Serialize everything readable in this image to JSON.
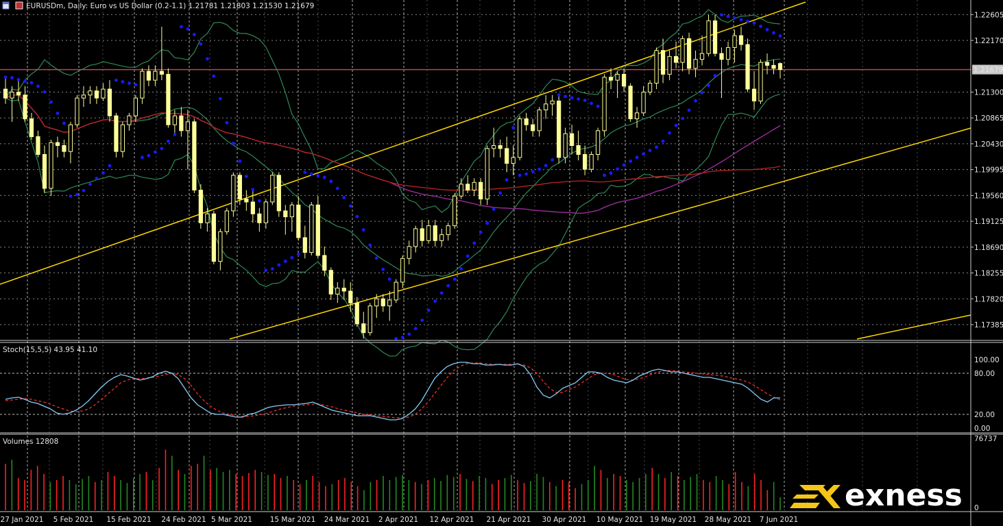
{
  "header": {
    "symbol_line": "EURUSDm, Daily:  Euro vs US Dollar (0.2-1.1)  1.21781 1.21803 1.21530 1.21679"
  },
  "chart_data": [
    {
      "type": "candlestick",
      "title": "EURUSDm, Daily:  Euro vs US Dollar (0.2-1.1)  1.21781 1.21803 1.21530 1.21679",
      "symbol": "EURUSDm",
      "timeframe": "Daily",
      "ohlc_last": {
        "open": 1.21781,
        "high": 1.21803,
        "low": 1.2153,
        "close": 1.21679
      },
      "current_price": "1.21679",
      "price_ticks": [
        "1.22605",
        "1.22170",
        "1.21300",
        "1.20865",
        "1.20430",
        "1.19995",
        "1.19560",
        "1.19125",
        "1.18690",
        "1.18255",
        "1.17820",
        "1.17385"
      ],
      "price_ylim": [
        1.1712,
        1.2285
      ],
      "x_labels": [
        "27 Jan 2021",
        "5 Feb 2021",
        "15 Feb 2021",
        "24 Feb 2021",
        "5 Mar 2021",
        "15 Mar 2021",
        "24 Mar 2021",
        "2 Apr 2021",
        "12 Apr 2021",
        "21 Apr 2021",
        "30 Apr 2021",
        "10 May 2021",
        "19 May 2021",
        "28 May 2021",
        "7 Jun 2021"
      ],
      "candles": [
        [
          1.2135,
          1.2155,
          1.211,
          1.212
        ],
        [
          1.212,
          1.214,
          1.208,
          1.213
        ],
        [
          1.213,
          1.215,
          1.2115,
          1.2125
        ],
        [
          1.2125,
          1.214,
          1.208,
          1.2085
        ],
        [
          1.2085,
          1.2095,
          1.205,
          1.2055
        ],
        [
          1.2055,
          1.2065,
          1.202,
          1.2025
        ],
        [
          1.2025,
          1.204,
          1.196,
          1.1968
        ],
        [
          1.1968,
          1.205,
          1.1955,
          1.2045
        ],
        [
          1.2045,
          1.2055,
          1.202,
          1.204
        ],
        [
          1.204,
          1.205,
          1.202,
          1.203
        ],
        [
          1.203,
          1.208,
          1.201,
          1.2075
        ],
        [
          1.2075,
          1.2125,
          1.207,
          1.212
        ],
        [
          1.212,
          1.214,
          1.2105,
          1.2125
        ],
        [
          1.2125,
          1.214,
          1.211,
          1.2132
        ],
        [
          1.2132,
          1.214,
          1.211,
          1.212
        ],
        [
          1.212,
          1.2145,
          1.2115,
          1.2135
        ],
        [
          1.2135,
          1.215,
          1.208,
          1.209
        ],
        [
          1.209,
          1.2095,
          1.202,
          1.203
        ],
        [
          1.203,
          1.208,
          1.202,
          1.2075
        ],
        [
          1.2075,
          1.2095,
          1.2065,
          1.209
        ],
        [
          1.209,
          1.2125,
          1.208,
          1.212
        ],
        [
          1.212,
          1.217,
          1.211,
          1.2165
        ],
        [
          1.2165,
          1.2175,
          1.214,
          1.215
        ],
        [
          1.215,
          1.2175,
          1.214,
          1.2165
        ],
        [
          1.2165,
          1.224,
          1.215,
          1.216
        ],
        [
          1.216,
          1.217,
          1.207,
          1.2075
        ],
        [
          1.2075,
          1.21,
          1.206,
          1.209
        ],
        [
          1.209,
          1.2105,
          1.2055,
          1.2065
        ],
        [
          1.2065,
          1.21,
          1.2,
          1.208
        ],
        [
          1.208,
          1.2085,
          1.196,
          1.1965
        ],
        [
          1.1965,
          1.1975,
          1.19,
          1.191
        ],
        [
          1.191,
          1.1935,
          1.1895,
          1.1925
        ],
        [
          1.1925,
          1.193,
          1.184,
          1.1845
        ],
        [
          1.1845,
          1.19,
          1.183,
          1.1895
        ],
        [
          1.1895,
          1.1935,
          1.189,
          1.193
        ],
        [
          1.193,
          1.1995,
          1.192,
          1.199
        ],
        [
          1.199,
          1.1995,
          1.194,
          1.195
        ],
        [
          1.195,
          1.1965,
          1.193,
          1.1945
        ],
        [
          1.1945,
          1.1965,
          1.191,
          1.1925
        ],
        [
          1.1925,
          1.1935,
          1.1895,
          1.191
        ],
        [
          1.191,
          1.195,
          1.19,
          1.1945
        ],
        [
          1.1945,
          1.1995,
          1.194,
          1.199
        ],
        [
          1.199,
          1.1995,
          1.192,
          1.193
        ],
        [
          1.193,
          1.194,
          1.189,
          1.192
        ],
        [
          1.192,
          1.1945,
          1.1895,
          1.194
        ],
        [
          1.194,
          1.1955,
          1.188,
          1.1885
        ],
        [
          1.1885,
          1.1905,
          1.185,
          1.186
        ],
        [
          1.186,
          1.1945,
          1.1855,
          1.194
        ],
        [
          1.194,
          1.1955,
          1.185,
          1.1855
        ],
        [
          1.1855,
          1.187,
          1.182,
          1.183
        ],
        [
          1.183,
          1.1835,
          1.178,
          1.179
        ],
        [
          1.179,
          1.181,
          1.1775,
          1.18
        ],
        [
          1.18,
          1.1815,
          1.178,
          1.1795
        ],
        [
          1.1795,
          1.181,
          1.176,
          1.1775
        ],
        [
          1.1775,
          1.1785,
          1.1735,
          1.174
        ],
        [
          1.174,
          1.176,
          1.1715,
          1.1725
        ],
        [
          1.1725,
          1.1775,
          1.172,
          1.177
        ],
        [
          1.177,
          1.179,
          1.175,
          1.1782
        ],
        [
          1.1782,
          1.179,
          1.176,
          1.177
        ],
        [
          1.177,
          1.1795,
          1.1745,
          1.178
        ],
        [
          1.178,
          1.1815,
          1.1775,
          1.181
        ],
        [
          1.181,
          1.1855,
          1.18,
          1.185
        ],
        [
          1.185,
          1.188,
          1.184,
          1.187
        ],
        [
          1.187,
          1.1905,
          1.186,
          1.19
        ],
        [
          1.19,
          1.1915,
          1.187,
          1.188
        ],
        [
          1.188,
          1.1915,
          1.1875,
          1.1905
        ],
        [
          1.1905,
          1.1915,
          1.187,
          1.188
        ],
        [
          1.188,
          1.19,
          1.187,
          1.189
        ],
        [
          1.189,
          1.191,
          1.188,
          1.1905
        ],
        [
          1.1905,
          1.196,
          1.19,
          1.1955
        ],
        [
          1.1955,
          1.1985,
          1.195,
          1.1975
        ],
        [
          1.1975,
          1.199,
          1.196,
          1.1965
        ],
        [
          1.1965,
          1.1985,
          1.1955,
          1.1978
        ],
        [
          1.1978,
          1.1985,
          1.194,
          1.195
        ],
        [
          1.195,
          1.204,
          1.194,
          1.2035
        ],
        [
          1.2035,
          1.207,
          1.202,
          1.204
        ],
        [
          1.204,
          1.205,
          1.202,
          1.2035
        ],
        [
          1.2035,
          1.2055,
          1.1995,
          1.201
        ],
        [
          1.201,
          1.204,
          1.199,
          1.202
        ],
        [
          1.202,
          1.209,
          1.2015,
          1.2085
        ],
        [
          1.2085,
          1.2095,
          1.2065,
          1.2075
        ],
        [
          1.2075,
          1.2085,
          1.2055,
          1.2065
        ],
        [
          1.2065,
          1.2105,
          1.2055,
          1.21
        ],
        [
          1.21,
          1.2125,
          1.2085,
          1.211
        ],
        [
          1.211,
          1.2125,
          1.209,
          1.2115
        ],
        [
          1.2115,
          1.2125,
          1.201,
          1.202
        ],
        [
          1.202,
          1.207,
          1.201,
          1.206
        ],
        [
          1.206,
          1.2075,
          1.2025,
          1.204
        ],
        [
          1.204,
          1.2065,
          1.2015,
          1.2025
        ],
        [
          1.2025,
          1.204,
          1.199,
          1.2
        ],
        [
          1.2,
          1.203,
          1.1995,
          1.2025
        ],
        [
          1.2025,
          1.207,
          1.2015,
          1.2065
        ],
        [
          1.2065,
          1.216,
          1.2055,
          1.2155
        ],
        [
          1.2155,
          1.217,
          1.2135,
          1.215
        ],
        [
          1.215,
          1.2165,
          1.212,
          1.216
        ],
        [
          1.216,
          1.217,
          1.213,
          1.214
        ],
        [
          1.214,
          1.2145,
          1.208,
          1.2085
        ],
        [
          1.2085,
          1.2105,
          1.207,
          1.2095
        ],
        [
          1.2095,
          1.214,
          1.209,
          1.213
        ],
        [
          1.213,
          1.215,
          1.2125,
          1.2145
        ],
        [
          1.2145,
          1.2205,
          1.2135,
          1.22
        ],
        [
          1.22,
          1.222,
          1.2145,
          1.216
        ],
        [
          1.216,
          1.22,
          1.215,
          1.219
        ],
        [
          1.219,
          1.2215,
          1.217,
          1.218
        ],
        [
          1.218,
          1.2225,
          1.2165,
          1.222
        ],
        [
          1.222,
          1.223,
          1.216,
          1.217
        ],
        [
          1.217,
          1.22,
          1.2155,
          1.2185
        ],
        [
          1.2185,
          1.2225,
          1.2175,
          1.2195
        ],
        [
          1.2195,
          1.226,
          1.219,
          1.225
        ],
        [
          1.225,
          1.226,
          1.219,
          1.2195
        ],
        [
          1.2195,
          1.2205,
          1.212,
          1.2185
        ],
        [
          1.2185,
          1.2215,
          1.2175,
          1.2205
        ],
        [
          1.2205,
          1.2235,
          1.218,
          1.2225
        ],
        [
          1.2225,
          1.224,
          1.22,
          1.221
        ],
        [
          1.221,
          1.222,
          1.213,
          1.2135
        ],
        [
          1.2135,
          1.2165,
          1.21,
          1.2115
        ],
        [
          1.2115,
          1.2185,
          1.211,
          1.218
        ],
        [
          1.218,
          1.2195,
          1.216,
          1.2175
        ],
        [
          1.2175,
          1.2185,
          1.216,
          1.217
        ],
        [
          1.21781,
          1.21803,
          1.2153,
          1.21679
        ]
      ],
      "stochastic": {
        "label": "Stoch(15,5,5) 43.95 41.10",
        "ticks": [
          "100.00",
          "80.00",
          "20.00",
          "0.00"
        ],
        "ylim": [
          0,
          100
        ],
        "levels": [
          80,
          20
        ],
        "main": [
          42,
          44,
          45,
          42,
          38,
          36,
          32,
          28,
          22,
          20,
          22,
          26,
          32,
          40,
          50,
          60,
          68,
          74,
          78,
          76,
          73,
          70,
          72,
          75,
          80,
          83,
          80,
          72,
          58,
          44,
          34,
          28,
          22,
          20,
          20,
          18,
          16,
          16,
          20,
          22,
          26,
          30,
          32,
          33,
          34,
          34,
          35,
          36,
          38,
          34,
          30,
          26,
          24,
          22,
          20,
          18,
          18,
          18,
          16,
          14,
          12,
          12,
          14,
          20,
          28,
          40,
          56,
          72,
          82,
          90,
          94,
          96,
          96,
          94,
          94,
          92,
          92,
          93,
          92,
          92,
          94,
          90,
          78,
          60,
          48,
          44,
          50,
          58,
          62,
          66,
          74,
          82,
          82,
          80,
          74,
          70,
          68,
          66,
          70,
          76,
          80,
          84,
          86,
          84,
          82,
          82,
          80,
          78,
          76,
          74,
          74,
          72,
          70,
          68,
          66,
          64,
          58,
          50,
          42,
          38,
          44,
          43.95
        ],
        "signal": [
          40,
          41,
          42,
          43,
          42,
          40,
          38,
          35,
          31,
          28,
          25,
          24,
          25,
          28,
          34,
          42,
          50,
          58,
          66,
          70,
          72,
          72,
          73,
          74,
          76,
          78,
          80,
          78,
          72,
          62,
          50,
          40,
          32,
          26,
          22,
          20,
          18,
          17,
          17,
          18,
          20,
          22,
          25,
          28,
          30,
          32,
          33,
          34,
          35,
          35,
          33,
          31,
          28,
          26,
          24,
          22,
          20,
          19,
          18,
          17,
          16,
          15,
          15,
          16,
          20,
          28,
          38,
          50,
          62,
          74,
          84,
          90,
          94,
          95,
          95,
          94,
          93,
          93,
          93,
          93,
          93,
          92,
          88,
          80,
          68,
          58,
          52,
          52,
          56,
          60,
          66,
          72,
          78,
          80,
          80,
          78,
          74,
          71,
          70,
          72,
          75,
          79,
          82,
          84,
          84,
          83,
          82,
          81,
          80,
          79,
          78,
          77,
          76,
          74,
          72,
          70,
          67,
          62,
          56,
          50,
          45,
          41.1
        ]
      },
      "volumes": {
        "label": "Volumes 12808",
        "ticks": [
          "76737",
          "0"
        ],
        "ylim": [
          0,
          76737
        ],
        "values": [
          46000,
          50000,
          32000,
          30000,
          40000,
          44000,
          36000,
          28000,
          30000,
          34000,
          30000,
          26000,
          31000,
          34000,
          28000,
          30000,
          38000,
          34000,
          30000,
          27000,
          32000,
          36000,
          38000,
          30000,
          42000,
          60000,
          54000,
          40000,
          36000,
          44000,
          46000,
          54000,
          40000,
          42000,
          38000,
          40000,
          36000,
          34000,
          37000,
          40000,
          38000,
          35000,
          36000,
          32000,
          34000,
          30000,
          26000,
          30000,
          34000,
          28000,
          24000,
          26000,
          30000,
          32000,
          28000,
          24000,
          20000,
          28000,
          30000,
          34000,
          30000,
          33000,
          35000,
          30000,
          28000,
          26000,
          30000,
          32000,
          29000,
          35000,
          33000,
          36000,
          31000,
          29000,
          34000,
          32000,
          26000,
          30000,
          32000,
          35000,
          30000,
          27000,
          29000,
          36000,
          33000,
          28000,
          24000,
          30000,
          28000,
          22000,
          26000,
          30000,
          44000,
          40000,
          32000,
          36000,
          34000,
          30000,
          28000,
          32000,
          36000,
          42000,
          36000,
          32000,
          38000,
          34000,
          30000,
          33000,
          36000,
          30000,
          28000,
          34000,
          30000,
          26000,
          38000,
          28000,
          24000,
          36000,
          30000,
          20000,
          28000,
          12808
        ]
      },
      "logo": {
        "text": "exness"
      }
    }
  ],
  "colors": {
    "background": "#000000",
    "bull_candle": "#ffff99",
    "bear_candle": "#ffff99",
    "psar": "#1a1aff",
    "bollinger": "#2e8b57",
    "ma_purple": "#9b2d9b",
    "ma_red": "#b22222",
    "trendline": "#ffd700",
    "price_line": "#c04848",
    "stoch_main": "#87cefa",
    "stoch_signal": "#ff3030",
    "vol_up": "#228b22",
    "vol_down": "#ff2222",
    "grid": "#d0d0d0",
    "logo_accent": "#f5c518"
  }
}
